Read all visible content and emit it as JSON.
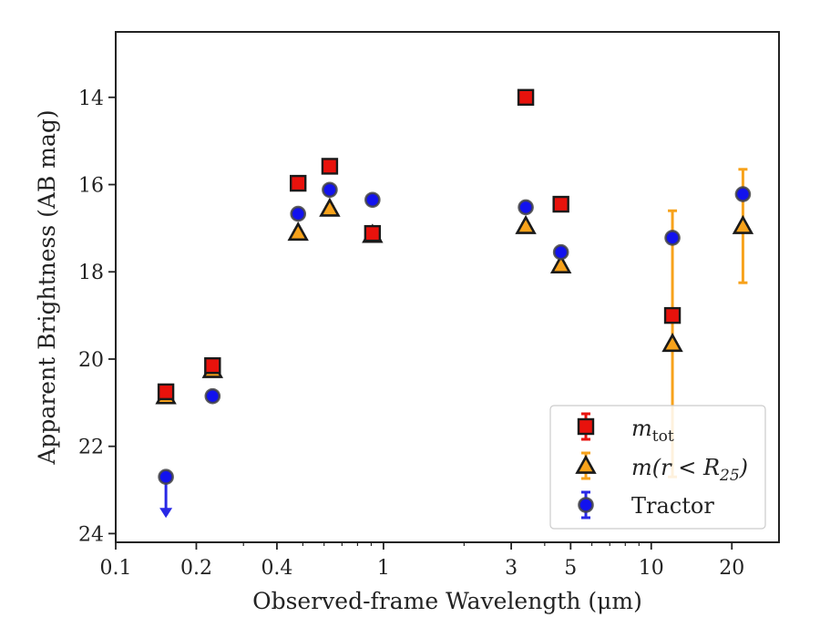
{
  "chart_data": {
    "type": "scatter",
    "xlabel": "Observed-frame Wavelength (μm)",
    "ylabel": "Apparent Brightness (AB mag)",
    "x_scale": "log",
    "xlim": [
      0.1,
      30
    ],
    "ylim": [
      24.2,
      12.5
    ],
    "y_inverted": true,
    "x_ticks": [
      {
        "value": 0.1,
        "label": "0.1"
      },
      {
        "value": 0.2,
        "label": "0.2"
      },
      {
        "value": 0.4,
        "label": "0.4"
      },
      {
        "value": 1,
        "label": "1"
      },
      {
        "value": 3,
        "label": "3"
      },
      {
        "value": 5,
        "label": "5"
      },
      {
        "value": 10,
        "label": "10"
      },
      {
        "value": 20,
        "label": "20"
      }
    ],
    "y_ticks": [
      {
        "value": 14,
        "label": "14"
      },
      {
        "value": 16,
        "label": "16"
      },
      {
        "value": 18,
        "label": "18"
      },
      {
        "value": 20,
        "label": "20"
      },
      {
        "value": 22,
        "label": "22"
      },
      {
        "value": 24,
        "label": "24"
      }
    ],
    "grid": false,
    "legend_position": "bottom-right",
    "series": [
      {
        "name": "m_tot",
        "legend_main": "m",
        "legend_sub": "tot",
        "marker": "square",
        "color": "#e8120c",
        "errorbar_color": "#e8120c",
        "points": [
          {
            "x": 0.154,
            "y": 20.75,
            "err": 0.1
          },
          {
            "x": 0.23,
            "y": 20.15,
            "err": 0.08
          },
          {
            "x": 0.48,
            "y": 15.97,
            "err": 0.05
          },
          {
            "x": 0.63,
            "y": 15.58,
            "err": 0.05
          },
          {
            "x": 0.91,
            "y": 17.12,
            "err": 0.05
          },
          {
            "x": 3.4,
            "y": 14.0,
            "err": 0.05
          },
          {
            "x": 4.6,
            "y": 16.45,
            "err": 0.05
          },
          {
            "x": 12.0,
            "y": 19.0,
            "err": 0.1
          }
        ]
      },
      {
        "name": "m(r < R25)",
        "legend_main": "m(r < R",
        "legend_sub": "25",
        "legend_close": ")",
        "marker": "triangle",
        "color": "#f7a21b",
        "errorbar_color": "#f7a21b",
        "points": [
          {
            "x": 0.154,
            "y": 20.85,
            "err": 0.15
          },
          {
            "x": 0.23,
            "y": 20.25,
            "err": 0.1
          },
          {
            "x": 0.48,
            "y": 17.1,
            "err": 0.05
          },
          {
            "x": 0.63,
            "y": 16.55,
            "err": 0.05
          },
          {
            "x": 0.91,
            "y": 17.15,
            "err": 0.05
          },
          {
            "x": 3.4,
            "y": 16.95,
            "err": 0.05
          },
          {
            "x": 4.6,
            "y": 17.85,
            "err": 0.05
          },
          {
            "x": 12.0,
            "y": 19.65,
            "err": 3.05
          },
          {
            "x": 22.0,
            "y": 16.95,
            "err": 1.3
          }
        ]
      },
      {
        "name": "Tractor",
        "legend_main": "Tractor",
        "marker": "circle",
        "color": "#1212ee",
        "errorbar_color": "#2828e6",
        "points": [
          {
            "x": 0.154,
            "y": 22.7,
            "err": 0.0,
            "upper_limit": true
          },
          {
            "x": 0.23,
            "y": 20.85,
            "err": 0.03
          },
          {
            "x": 0.48,
            "y": 16.67,
            "err": 0.03
          },
          {
            "x": 0.63,
            "y": 16.12,
            "err": 0.03
          },
          {
            "x": 0.91,
            "y": 16.35,
            "err": 0.03
          },
          {
            "x": 3.4,
            "y": 16.52,
            "err": 0.03
          },
          {
            "x": 4.6,
            "y": 17.55,
            "err": 0.03
          },
          {
            "x": 12.0,
            "y": 17.22,
            "err": 0.05
          },
          {
            "x": 22.0,
            "y": 16.22,
            "err": 0.05
          }
        ]
      }
    ]
  }
}
